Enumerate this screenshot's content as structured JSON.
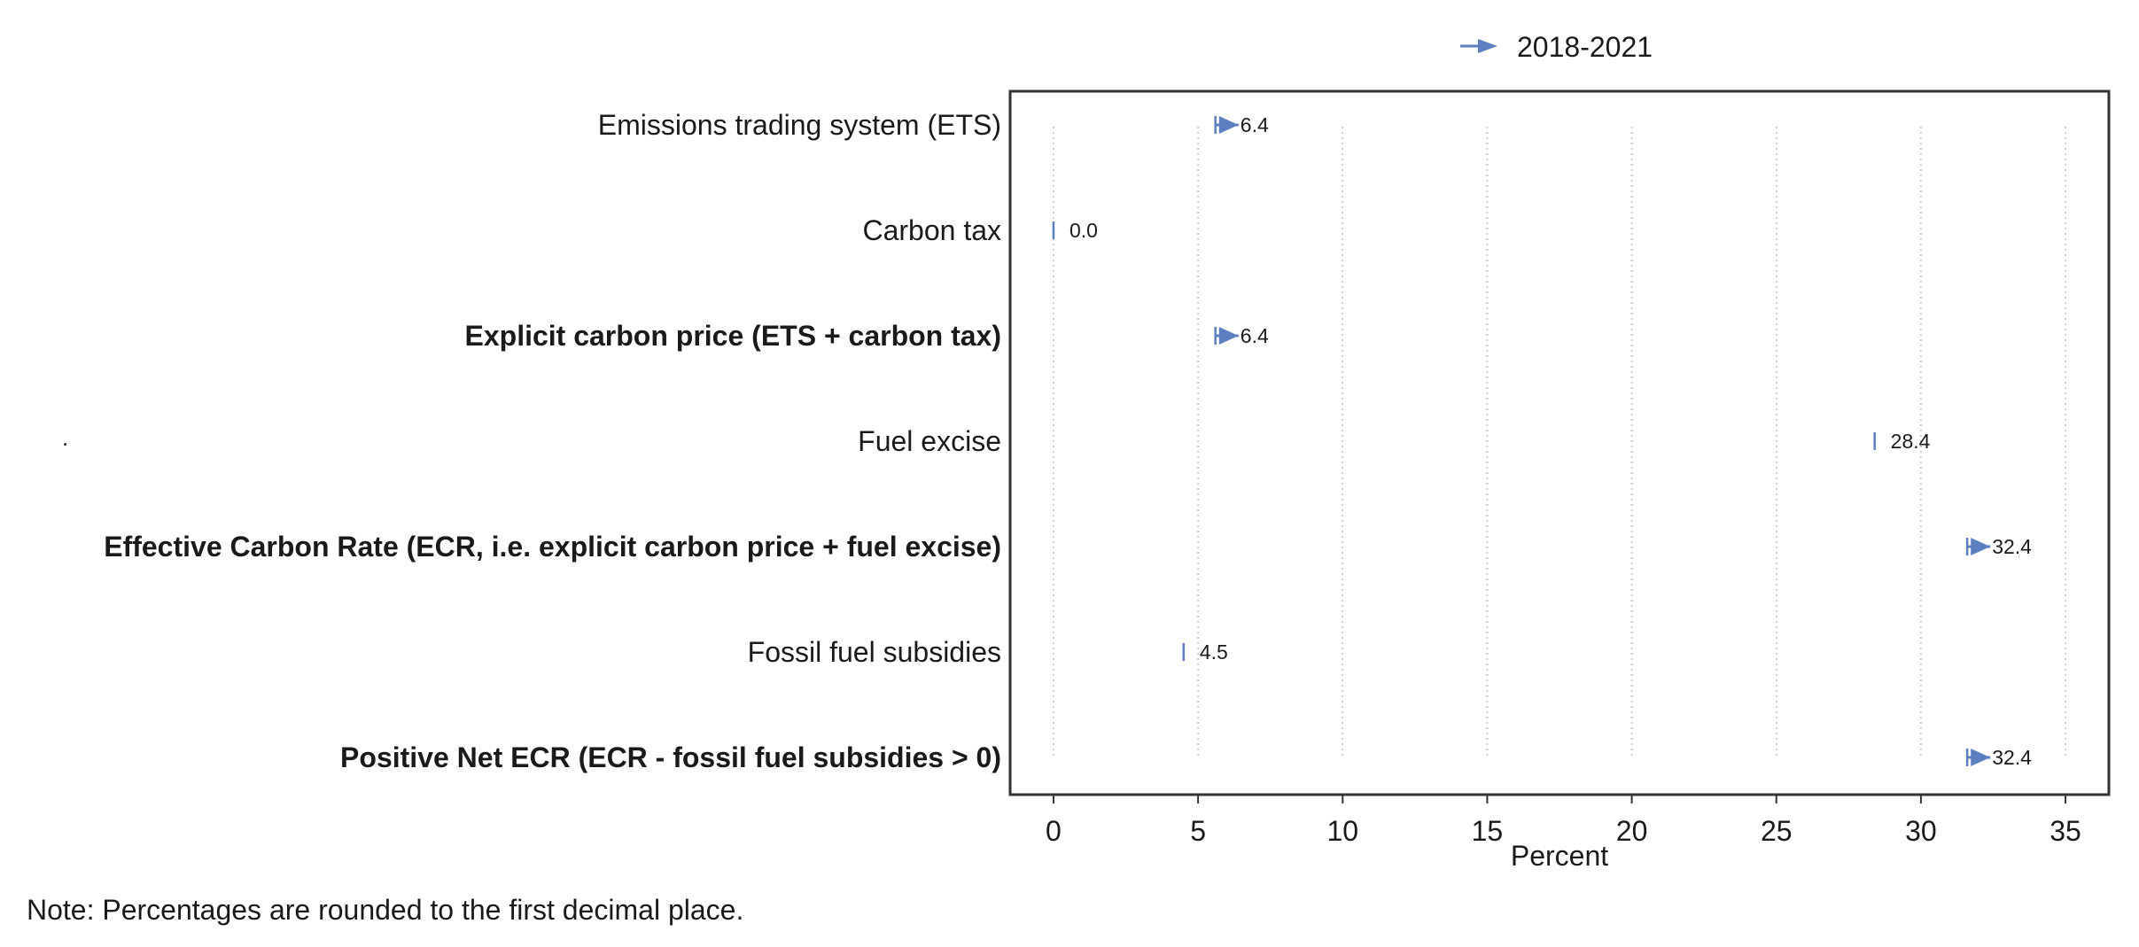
{
  "chart_data": {
    "type": "dot-arrow",
    "legend": {
      "label": "2018-2021",
      "placement": "top-center"
    },
    "xlabel": "Percent",
    "xlim": [
      -1.5,
      36.5
    ],
    "xticks": [
      0,
      5,
      10,
      15,
      20,
      25,
      30,
      35
    ],
    "grid": {
      "vertical": true,
      "horizontal": false,
      "style": "dotted"
    },
    "categories": [
      {
        "label": "Emissions trading system (ETS)",
        "bold": false,
        "start": 5.6,
        "end": 6.4,
        "value_label": "6.4"
      },
      {
        "label": "Carbon tax",
        "bold": false,
        "start": 0.0,
        "end": 0.0,
        "value_label": "0.0"
      },
      {
        "label": "Explicit carbon price (ETS + carbon tax)",
        "bold": true,
        "start": 5.6,
        "end": 6.4,
        "value_label": "6.4"
      },
      {
        "label": "Fuel excise",
        "bold": false,
        "start": 28.4,
        "end": 28.4,
        "value_label": "28.4"
      },
      {
        "label": "Effective Carbon Rate (ECR, i.e. explicit carbon price + fuel excise)",
        "bold": true,
        "start": 31.6,
        "end": 32.4,
        "value_label": "32.4"
      },
      {
        "label": "Fossil fuel subsidies",
        "bold": false,
        "start": 4.5,
        "end": 4.5,
        "value_label": "4.5"
      },
      {
        "label": "Positive Net ECR (ECR - fossil fuel subsidies > 0)",
        "bold": true,
        "start": 31.6,
        "end": 32.4,
        "value_label": "32.4"
      }
    ],
    "colors": {
      "series": "#5b7fbf",
      "frame": "#333333",
      "grid": "#bbbbbb",
      "text": "#1a1a1a"
    }
  },
  "note": "Note: Percentages are rounded to the first decimal place.",
  "stray_mark": "."
}
